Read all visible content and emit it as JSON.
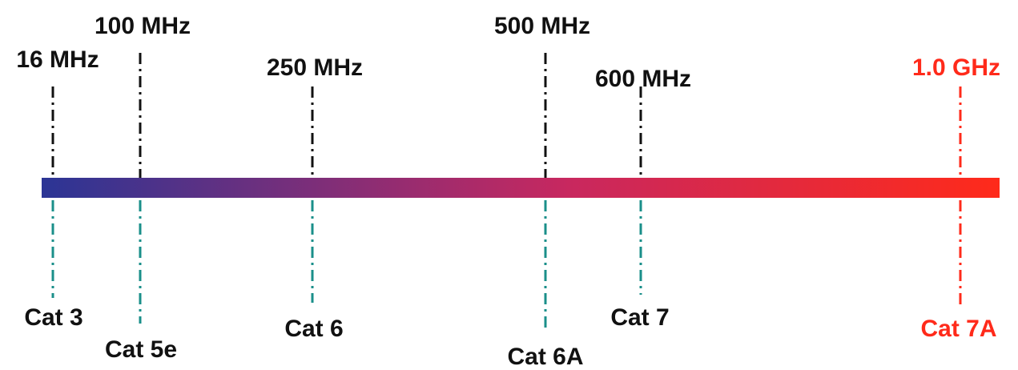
{
  "colors": {
    "default_text": "#111111",
    "upper_dash": "#111111",
    "lower_dash": "#1a8f8a",
    "highlight": "#ff2a1a",
    "bar_start": "#2b3595",
    "bar_mid": "#c8285f",
    "bar_end": "#ff2a1a"
  },
  "markers": [
    {
      "id": "cat3",
      "frequency": "16 MHz",
      "category": "Cat 3",
      "highlight": false
    },
    {
      "id": "cat5e",
      "frequency": "100 MHz",
      "category": "Cat 5e",
      "highlight": false
    },
    {
      "id": "cat6",
      "frequency": "250 MHz",
      "category": "Cat 6",
      "highlight": false
    },
    {
      "id": "cat6a",
      "frequency": "500 MHz",
      "category": "Cat 6A",
      "highlight": false
    },
    {
      "id": "cat7",
      "frequency": "600 MHz",
      "category": "Cat 7",
      "highlight": false
    },
    {
      "id": "cat7a",
      "frequency": "1.0 GHz",
      "category": "Cat 7A",
      "highlight": true
    }
  ]
}
